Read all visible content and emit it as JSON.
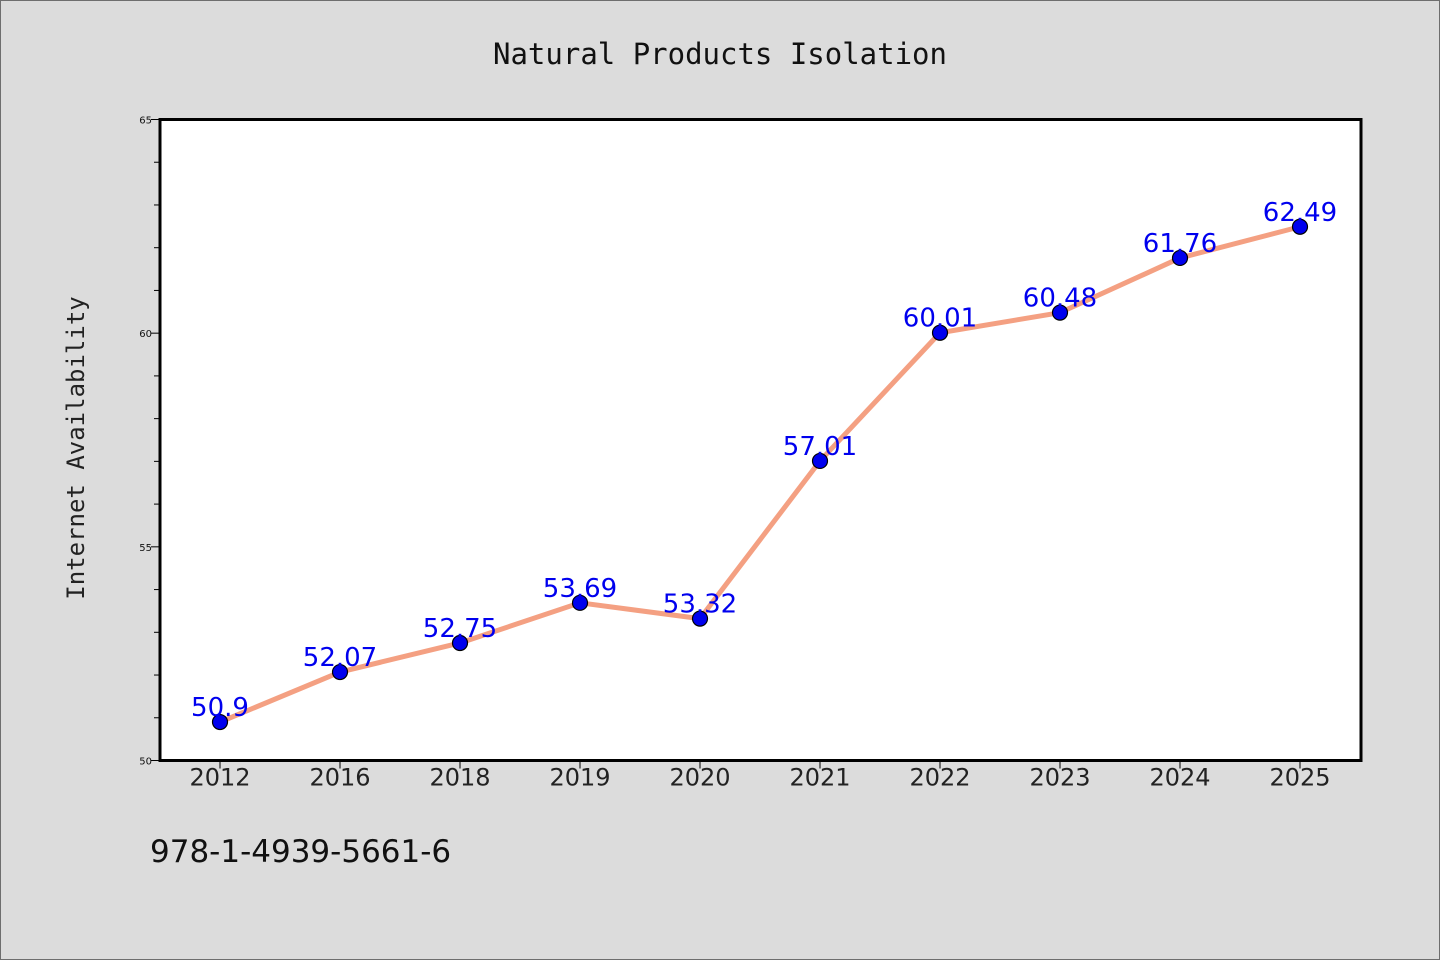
{
  "chart_data": {
    "type": "line",
    "title": "Natural Products Isolation",
    "xlabel": "",
    "ylabel": "Internet Availability",
    "categories": [
      "2012",
      "2016",
      "2018",
      "2019",
      "2020",
      "2021",
      "2022",
      "2023",
      "2024",
      "2025"
    ],
    "series": [
      {
        "values": [
          50.9,
          52.07,
          52.75,
          53.69,
          53.32,
          57.01,
          60.01,
          60.48,
          61.76,
          62.49
        ],
        "labels": [
          "50.9",
          "52.07",
          "52.75",
          "53.69",
          "53.32",
          "57.01",
          "60.01",
          "60.48",
          "61.76",
          "62.49"
        ]
      }
    ],
    "ylim": [
      50,
      65
    ],
    "yticks": [
      "50",
      "55",
      "60",
      "65"
    ],
    "grid": false,
    "legend": "none",
    "colors": {
      "line": "#f4a082",
      "marker": "#0000ee",
      "label": "#0000ee",
      "background": "#dcdcdc",
      "plot_background": "#ffffff"
    }
  },
  "footer": {
    "code": "978-1-4939-5661-6"
  }
}
